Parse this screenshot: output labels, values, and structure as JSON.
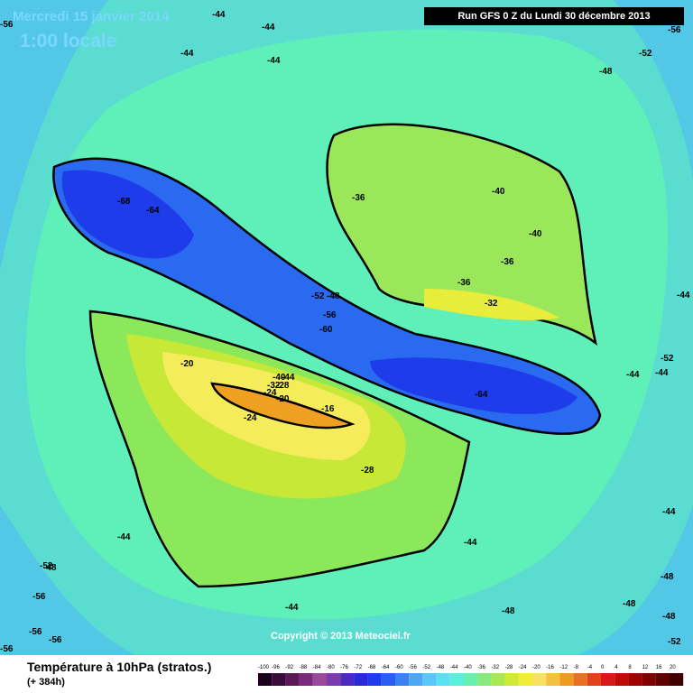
{
  "header": {
    "date_line": "Mercredi 15 janvier 2014",
    "time_line": "1:00 locale",
    "run_info": "Run GFS 0 Z du Lundi 30 décembre 2013"
  },
  "map": {
    "copyright": "Copyright © 2013 Meteociel.fr",
    "contour_labels": [
      "-56",
      "-44",
      "-44",
      "-44",
      "-44",
      "-48",
      "-52",
      "-56",
      "-68",
      "-64",
      "-36",
      "-40",
      "-40",
      "-36",
      "-36",
      "-32",
      "-52",
      "-48",
      "-56",
      "-60",
      "-44",
      "-44",
      "-52",
      "-44",
      "-64",
      "-20",
      "-40",
      "-44",
      "-32",
      "-28",
      "-24",
      "-20",
      "-16",
      "-24",
      "-28",
      "-44",
      "-48",
      "-44",
      "-52",
      "-56",
      "-56",
      "-56",
      "-44",
      "-48",
      "-48",
      "-44",
      "-48",
      "-48",
      "-52",
      "-56"
    ]
  },
  "legend": {
    "title": "Température à 10hPa (stratos.)",
    "subtitle": "(+ 384h)",
    "scale_values": [
      "-100",
      "-96",
      "-92",
      "-88",
      "-84",
      "-80",
      "-76",
      "-72",
      "-68",
      "-64",
      "-60",
      "-56",
      "-52",
      "-48",
      "-44",
      "-40",
      "-36",
      "-32",
      "-28",
      "-24",
      "-20",
      "-16",
      "-12",
      "-8",
      "-4",
      "0",
      "4",
      "8",
      "12",
      "16",
      "20"
    ],
    "scale_colors": [
      "#1a001a",
      "#3a0a3a",
      "#5a1a5a",
      "#7a2a7a",
      "#9a4a9a",
      "#7a3ab0",
      "#4a2ac0",
      "#2a2ad8",
      "#1e3cea",
      "#2a5ef0",
      "#3a82f2",
      "#4aa8f6",
      "#58c8f8",
      "#5ae0f0",
      "#5aeedc",
      "#66f0b0",
      "#86ea80",
      "#a8e850",
      "#d0e838",
      "#f0ec3a",
      "#f8e060",
      "#f4c040",
      "#f09a20",
      "#e87020",
      "#e04418",
      "#d81818",
      "#c00a0a",
      "#a00000",
      "#800000",
      "#600000",
      "#400000"
    ]
  }
}
